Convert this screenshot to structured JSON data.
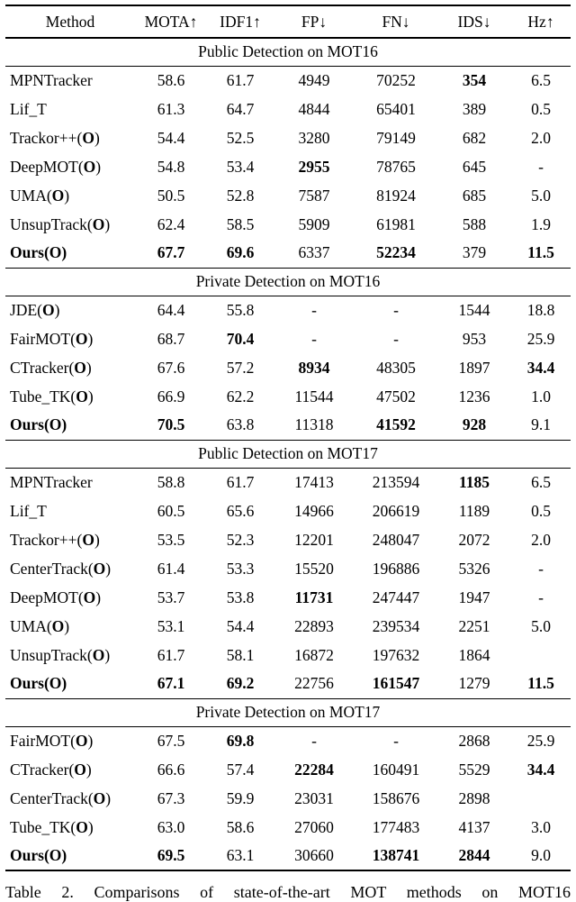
{
  "columns": [
    "Method",
    "MOTA↑",
    "IDF1↑",
    "FP↓",
    "FN↓",
    "IDS↓",
    "Hz↑"
  ],
  "sections": [
    {
      "title": "Public Detection on MOT16",
      "rows": [
        {
          "method": "MPNTracker",
          "oracle": false,
          "method_bold": false,
          "values": [
            "58.6",
            "61.7",
            "4949",
            "70252",
            "354",
            "6.5"
          ],
          "bold": [
            false,
            false,
            false,
            false,
            true,
            false
          ]
        },
        {
          "method": "Lif_T",
          "oracle": false,
          "method_bold": false,
          "values": [
            "61.3",
            "64.7",
            "4844",
            "65401",
            "389",
            "0.5"
          ],
          "bold": [
            false,
            false,
            false,
            false,
            false,
            false
          ]
        },
        {
          "method": "Trackor++",
          "oracle": true,
          "method_bold": false,
          "values": [
            "54.4",
            "52.5",
            "3280",
            "79149",
            "682",
            "2.0"
          ],
          "bold": [
            false,
            false,
            false,
            false,
            false,
            false
          ]
        },
        {
          "method": "DeepMOT",
          "oracle": true,
          "method_bold": false,
          "values": [
            "54.8",
            "53.4",
            "2955",
            "78765",
            "645",
            "-"
          ],
          "bold": [
            false,
            false,
            true,
            false,
            false,
            false
          ]
        },
        {
          "method": "UMA",
          "oracle": true,
          "method_bold": false,
          "values": [
            "50.5",
            "52.8",
            "7587",
            "81924",
            "685",
            "5.0"
          ],
          "bold": [
            false,
            false,
            false,
            false,
            false,
            false
          ]
        },
        {
          "method": "UnsupTrack",
          "oracle": true,
          "method_bold": false,
          "values": [
            "62.4",
            "58.5",
            "5909",
            "61981",
            "588",
            "1.9"
          ],
          "bold": [
            false,
            false,
            false,
            false,
            false,
            false
          ]
        },
        {
          "method": "Ours",
          "oracle": true,
          "method_bold": true,
          "values": [
            "67.7",
            "69.6",
            "6337",
            "52234",
            "379",
            "11.5"
          ],
          "bold": [
            true,
            true,
            false,
            true,
            false,
            true
          ]
        }
      ]
    },
    {
      "title": "Private Detection on MOT16",
      "rows": [
        {
          "method": "JDE",
          "oracle": true,
          "method_bold": false,
          "values": [
            "64.4",
            "55.8",
            "-",
            "-",
            "1544",
            "18.8"
          ],
          "bold": [
            false,
            false,
            false,
            false,
            false,
            false
          ]
        },
        {
          "method": "FairMOT",
          "oracle": true,
          "method_bold": false,
          "values": [
            "68.7",
            "70.4",
            "-",
            "-",
            "953",
            "25.9"
          ],
          "bold": [
            false,
            true,
            false,
            false,
            false,
            false
          ]
        },
        {
          "method": "CTracker",
          "oracle": true,
          "method_bold": false,
          "values": [
            "67.6",
            "57.2",
            "8934",
            "48305",
            "1897",
            "34.4"
          ],
          "bold": [
            false,
            false,
            true,
            false,
            false,
            true
          ]
        },
        {
          "method": "Tube_TK",
          "oracle": true,
          "method_bold": false,
          "values": [
            "66.9",
            "62.2",
            "11544",
            "47502",
            "1236",
            "1.0"
          ],
          "bold": [
            false,
            false,
            false,
            false,
            false,
            false
          ]
        },
        {
          "method": "Ours",
          "oracle": true,
          "method_bold": true,
          "values": [
            "70.5",
            "63.8",
            "11318",
            "41592",
            "928",
            "9.1"
          ],
          "bold": [
            true,
            false,
            false,
            true,
            true,
            false
          ]
        }
      ]
    },
    {
      "title": "Public Detection on MOT17",
      "rows": [
        {
          "method": "MPNTracker",
          "oracle": false,
          "method_bold": false,
          "values": [
            "58.8",
            "61.7",
            "17413",
            "213594",
            "1185",
            "6.5"
          ],
          "bold": [
            false,
            false,
            false,
            false,
            true,
            false
          ]
        },
        {
          "method": "Lif_T",
          "oracle": false,
          "method_bold": false,
          "values": [
            "60.5",
            "65.6",
            "14966",
            "206619",
            "1189",
            "0.5"
          ],
          "bold": [
            false,
            false,
            false,
            false,
            false,
            false
          ]
        },
        {
          "method": "Trackor++",
          "oracle": true,
          "method_bold": false,
          "values": [
            "53.5",
            "52.3",
            "12201",
            "248047",
            "2072",
            "2.0"
          ],
          "bold": [
            false,
            false,
            false,
            false,
            false,
            false
          ]
        },
        {
          "method": "CenterTrack",
          "oracle": true,
          "method_bold": false,
          "values": [
            "61.4",
            "53.3",
            "15520",
            "196886",
            "5326",
            "-"
          ],
          "bold": [
            false,
            false,
            false,
            false,
            false,
            false
          ]
        },
        {
          "method": "DeepMOT",
          "oracle": true,
          "method_bold": false,
          "values": [
            "53.7",
            "53.8",
            "11731",
            "247447",
            "1947",
            "-"
          ],
          "bold": [
            false,
            false,
            true,
            false,
            false,
            false
          ]
        },
        {
          "method": "UMA",
          "oracle": true,
          "method_bold": false,
          "values": [
            "53.1",
            "54.4",
            "22893",
            "239534",
            "2251",
            "5.0"
          ],
          "bold": [
            false,
            false,
            false,
            false,
            false,
            false
          ]
        },
        {
          "method": "UnsupTrack",
          "oracle": true,
          "method_bold": false,
          "values": [
            "61.7",
            "58.1",
            "16872",
            "197632",
            "1864",
            ""
          ],
          "bold": [
            false,
            false,
            false,
            false,
            false,
            false
          ]
        },
        {
          "method": "Ours",
          "oracle": true,
          "method_bold": true,
          "values": [
            "67.1",
            "69.2",
            "22756",
            "161547",
            "1279",
            "11.5"
          ],
          "bold": [
            true,
            true,
            false,
            true,
            false,
            true
          ]
        }
      ]
    },
    {
      "title": "Private Detection on MOT17",
      "rows": [
        {
          "method": "FairMOT",
          "oracle": true,
          "method_bold": false,
          "values": [
            "67.5",
            "69.8",
            "-",
            "-",
            "2868",
            "25.9"
          ],
          "bold": [
            false,
            true,
            false,
            false,
            false,
            false
          ]
        },
        {
          "method": "CTracker",
          "oracle": true,
          "method_bold": false,
          "values": [
            "66.6",
            "57.4",
            "22284",
            "160491",
            "5529",
            "34.4"
          ],
          "bold": [
            false,
            false,
            true,
            false,
            false,
            true
          ]
        },
        {
          "method": "CenterTrack",
          "oracle": true,
          "method_bold": false,
          "values": [
            "67.3",
            "59.9",
            "23031",
            "158676",
            "2898",
            ""
          ],
          "bold": [
            false,
            false,
            false,
            false,
            false,
            false
          ]
        },
        {
          "method": "Tube_TK",
          "oracle": true,
          "method_bold": false,
          "values": [
            "63.0",
            "58.6",
            "27060",
            "177483",
            "4137",
            "3.0"
          ],
          "bold": [
            false,
            false,
            false,
            false,
            false,
            false
          ]
        },
        {
          "method": "Ours",
          "oracle": true,
          "method_bold": true,
          "values": [
            "69.5",
            "63.1",
            "30660",
            "138741",
            "2844",
            "9.0"
          ],
          "bold": [
            true,
            false,
            false,
            true,
            true,
            false
          ]
        }
      ]
    }
  ],
  "caption": "Table 2. Comparisons of state-of-the-art MOT methods on MOT16"
}
